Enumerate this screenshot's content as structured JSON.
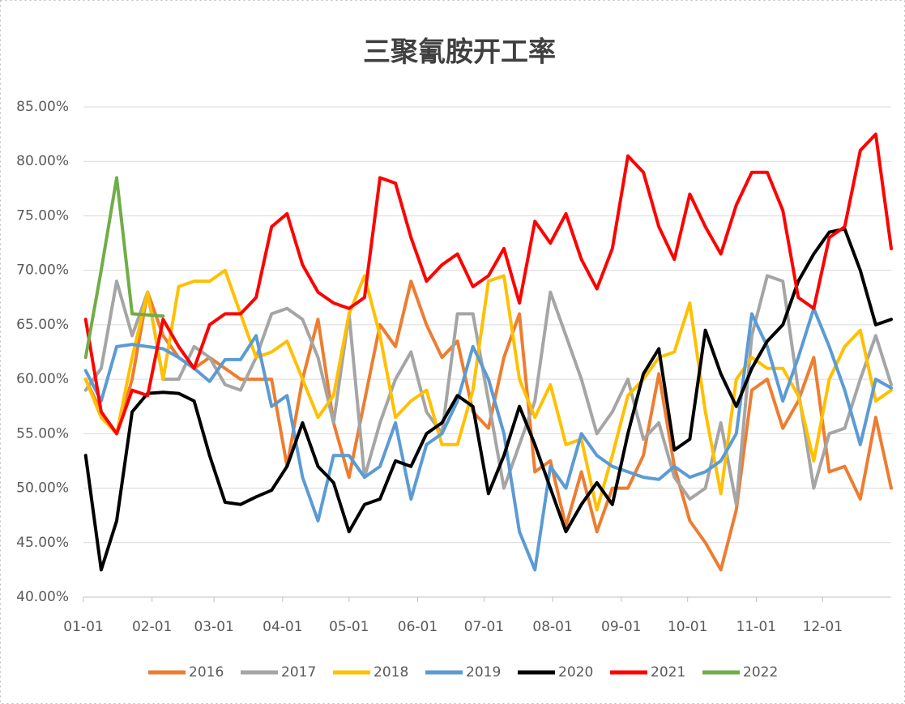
{
  "chart_data": {
    "type": "line",
    "title": "三聚氰胺开工率",
    "x": [
      1,
      8,
      15,
      22,
      29,
      36,
      43,
      50,
      57,
      64,
      71,
      78,
      85,
      92,
      99,
      106,
      113,
      120,
      127,
      134,
      141,
      148,
      155,
      162,
      169,
      176,
      183,
      190,
      197,
      204,
      211,
      218,
      225,
      232,
      239,
      246,
      253,
      260,
      267,
      274,
      281,
      288,
      295,
      302,
      309,
      316,
      323,
      330,
      337,
      344,
      351,
      358,
      365
    ],
    "xlim": [
      0,
      365
    ],
    "xticks": [
      {
        "value": 0,
        "label": "01-01"
      },
      {
        "value": 31,
        "label": "02-01"
      },
      {
        "value": 59,
        "label": "03-01"
      },
      {
        "value": 90,
        "label": "04-01"
      },
      {
        "value": 120,
        "label": "05-01"
      },
      {
        "value": 151,
        "label": "06-01"
      },
      {
        "value": 181,
        "label": "07-01"
      },
      {
        "value": 212,
        "label": "08-01"
      },
      {
        "value": 243,
        "label": "09-01"
      },
      {
        "value": 273,
        "label": "10-01"
      },
      {
        "value": 304,
        "label": "11-01"
      },
      {
        "value": 334,
        "label": "12-01"
      }
    ],
    "ylim": [
      40,
      85
    ],
    "yticks": [
      {
        "value": 40,
        "label": "40.00%"
      },
      {
        "value": 45,
        "label": "45.00%"
      },
      {
        "value": 50,
        "label": "50.00%"
      },
      {
        "value": 55,
        "label": "55.00%"
      },
      {
        "value": 60,
        "label": "60.00%"
      },
      {
        "value": 65,
        "label": "65.00%"
      },
      {
        "value": 70,
        "label": "70.00%"
      },
      {
        "value": 75,
        "label": "75.00%"
      },
      {
        "value": 80,
        "label": "80.00%"
      },
      {
        "value": 85,
        "label": "85.00%"
      }
    ],
    "grid": true,
    "legend": "bottom",
    "series": [
      {
        "name": "2016",
        "color": "#ed7d31",
        "values": [
          60,
          57,
          55,
          60,
          68,
          64,
          62,
          61,
          62,
          61,
          60,
          60,
          60,
          52,
          60,
          65.5,
          56,
          51,
          58,
          65,
          63,
          69,
          65,
          62,
          63.5,
          57,
          55.5,
          62,
          66,
          51.5,
          52.5,
          46.5,
          51.5,
          46,
          50,
          50,
          53,
          60.5,
          52,
          47,
          45,
          42.5,
          48,
          59,
          60,
          55.5,
          58,
          62,
          51.5,
          52,
          49,
          56.5,
          50
        ]
      },
      {
        "name": "2017",
        "color": "#a5a5a5",
        "values": [
          59,
          61,
          69,
          64,
          68,
          60,
          60,
          63,
          62,
          59.5,
          59,
          62,
          66,
          66.5,
          65.5,
          62,
          56,
          66,
          51,
          56,
          60,
          62.5,
          57,
          55,
          66,
          66,
          58,
          50,
          54,
          58,
          68,
          64,
          60,
          55,
          57,
          60,
          54.5,
          56,
          51,
          49,
          50,
          56,
          48.5,
          64,
          69.5,
          69,
          59,
          50,
          55,
          55.5,
          60,
          64,
          59.5
        ]
      },
      {
        "name": "2018",
        "color": "#ffc000",
        "values": [
          60,
          56.5,
          55,
          62,
          68,
          60,
          68.5,
          69,
          69,
          70,
          66,
          62,
          62.5,
          63.5,
          60,
          56.5,
          58.5,
          66,
          69.5,
          64,
          56.5,
          58,
          59,
          54,
          54,
          59,
          69,
          69.5,
          60,
          56.5,
          59.5,
          54,
          54.5,
          48,
          53,
          58.5,
          60,
          62,
          62.5,
          67,
          57,
          49.5,
          60,
          62,
          61,
          61,
          58.5,
          52.5,
          60,
          63,
          64.5,
          58,
          59
        ]
      },
      {
        "name": "2019",
        "color": "#5b9bd5",
        "values": [
          60.8,
          58,
          63,
          63.2,
          63,
          62.8,
          62,
          61,
          59.8,
          61.8,
          61.8,
          64,
          57.5,
          58.5,
          51,
          47,
          53,
          53,
          51,
          52,
          56,
          49,
          54,
          55,
          58,
          63,
          60,
          55,
          46,
          42.5,
          52,
          50,
          55,
          53,
          52,
          51.5,
          51,
          50.8,
          52,
          51,
          51.5,
          52.5,
          55,
          66,
          63,
          58,
          62,
          66.5,
          63,
          59,
          54,
          60,
          59.2
        ]
      },
      {
        "name": "2020",
        "color": "#000000",
        "values": [
          53,
          42.5,
          47,
          57,
          58.7,
          58.8,
          58.7,
          58,
          53,
          48.7,
          48.5,
          49.2,
          49.8,
          52,
          56,
          52,
          50.5,
          46,
          48.5,
          49,
          52.5,
          52,
          55,
          56,
          58.5,
          57.5,
          49.5,
          53,
          57.5,
          54,
          50,
          46,
          48.5,
          50.5,
          48.5,
          55,
          60.5,
          62.8,
          53.5,
          54.5,
          64.5,
          60.5,
          57.5,
          61,
          63.5,
          65,
          69,
          71.5,
          73.5,
          73.8,
          70,
          65,
          65.5
        ]
      },
      {
        "name": "2021",
        "color": "#ff0000",
        "values": [
          65.5,
          57,
          55,
          59,
          58.5,
          65.5,
          63,
          61,
          65,
          66,
          66,
          67.5,
          74,
          75.2,
          70.5,
          68,
          67,
          66.5,
          67.5,
          78.5,
          78,
          73,
          69,
          70.5,
          71.5,
          68.5,
          69.5,
          72,
          67,
          74.5,
          72.5,
          75.2,
          71,
          68.3,
          72,
          80.5,
          79,
          74,
          71,
          77,
          74,
          71.5,
          76,
          79,
          79,
          75.5,
          67.5,
          66.5,
          73,
          74,
          81,
          82.5,
          72
        ]
      },
      {
        "name": "2022",
        "color": "#70ad47",
        "values": [
          62,
          70,
          78.5,
          66,
          65.9,
          65.8,
          null,
          null,
          null,
          null,
          null,
          null,
          null,
          null,
          null,
          null,
          null,
          null,
          null,
          null,
          null,
          null,
          null,
          null,
          null,
          null,
          null,
          null,
          null,
          null,
          null,
          null,
          null,
          null,
          null,
          null,
          null,
          null,
          null,
          null,
          null,
          null,
          null,
          null,
          null,
          null,
          null,
          null,
          null,
          null,
          null,
          null,
          null
        ]
      }
    ]
  }
}
